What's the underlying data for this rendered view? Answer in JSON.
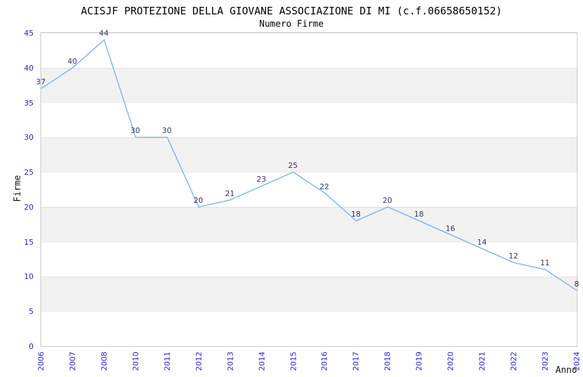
{
  "header": {
    "title": "ACISJF PROTEZIONE DELLA GIOVANE ASSOCIAZIONE DI MI (c.f.06658650152)",
    "subtitle": "Numero Firme"
  },
  "chart_data": {
    "type": "line",
    "title": "ACISJF PROTEZIONE DELLA GIOVANE ASSOCIAZIONE DI MI (c.f.06658650152)",
    "subtitle": "Numero Firme",
    "xlabel": "Anno",
    "ylabel": "Firme",
    "categories": [
      "2006",
      "2007",
      "2008",
      "2010",
      "2011",
      "2012",
      "2013",
      "2014",
      "2015",
      "2016",
      "2017",
      "2018",
      "2019",
      "2020",
      "2021",
      "2022",
      "2023",
      "2024"
    ],
    "series": [
      {
        "name": "Firme",
        "values": [
          37,
          40,
          44,
          30,
          30,
          20,
          21,
          23,
          25,
          22,
          18,
          20,
          18,
          16,
          14,
          12,
          11,
          8
        ]
      }
    ],
    "data_labels": [
      37,
      40,
      44,
      30,
      30,
      20,
      21,
      23,
      25,
      22,
      18,
      20,
      18,
      16,
      14,
      12,
      11,
      8
    ],
    "ylim": [
      0,
      45
    ],
    "yticks": [
      0,
      5,
      10,
      15,
      20,
      25,
      30,
      35,
      40,
      45
    ],
    "grid": "horizontal-bands-every-5",
    "legend": "none",
    "colors": {
      "line": "#7cb2e8",
      "tick_label": "#2323cf",
      "data_label": "#333366",
      "band_gray": "#f1f1f1",
      "band_white": "#ffffff",
      "plot_border": "#c9c9c9",
      "title_text": "#000000"
    }
  }
}
